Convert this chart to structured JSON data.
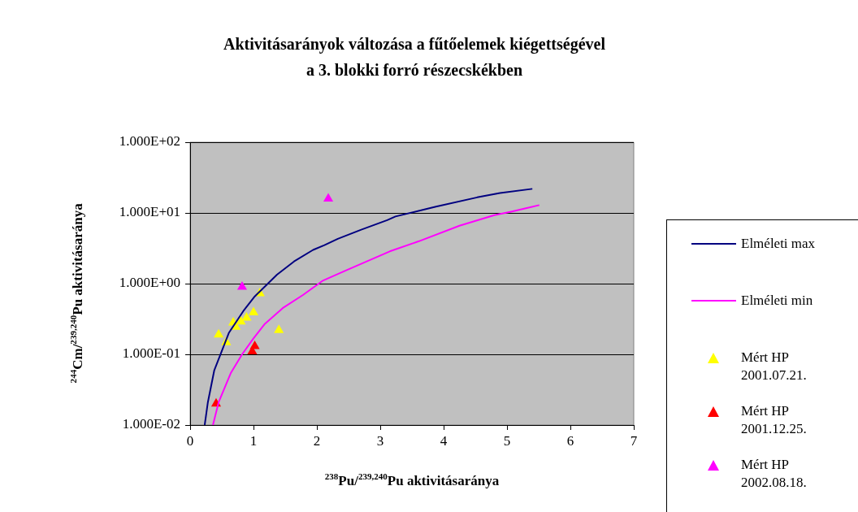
{
  "chart_data": {
    "type": "scatter",
    "title": "Aktivitásarányok változása a fűtőelemek kiégettségével\na 3. blokki forró részecskékben",
    "xlabel": "$^{238}$Pu/$^{239,240}$Pu aktivitásaránya",
    "ylabel": "$^{244}$Cm/$^{239,240}$Pu aktivitásaránya",
    "log": "y",
    "xlim": [
      0,
      7
    ],
    "xticks": [
      0,
      1,
      2,
      3,
      4,
      5,
      6,
      7
    ],
    "ylim": [
      0.01,
      100
    ],
    "yticks": [
      {
        "value": 0.01,
        "label": "1.000E-02"
      },
      {
        "value": 0.1,
        "label": "1.000E-01"
      },
      {
        "value": 1,
        "label": "1.000E+00"
      },
      {
        "value": 10,
        "label": "1.000E+01"
      },
      {
        "value": 100,
        "label": "1.000E+02"
      }
    ],
    "grid": "y",
    "legend": "right",
    "series": [
      {
        "name": "Elméleti max",
        "type": "line",
        "marker": "none",
        "color": "#000080",
        "x": [
          0.23,
          0.28,
          0.38,
          0.61,
          0.84,
          1.02,
          1.37,
          1.64,
          1.94,
          2.12,
          2.33,
          2.7,
          3.11,
          3.24,
          3.88,
          4.53,
          4.89,
          5.4
        ],
        "values": [
          0.01,
          0.021,
          0.059,
          0.2,
          0.41,
          0.66,
          1.34,
          2.06,
          3.0,
          3.5,
          4.3,
          5.8,
          7.9,
          8.9,
          12.3,
          16.6,
          19.1,
          21.9
        ]
      },
      {
        "name": "Elméleti min",
        "type": "line",
        "marker": "none",
        "color": "#ff00ff",
        "x": [
          0.36,
          0.45,
          0.64,
          0.82,
          1.0,
          1.18,
          1.46,
          1.78,
          2.1,
          2.47,
          3.15,
          3.61,
          4.25,
          4.8,
          5.08,
          5.51
        ],
        "values": [
          0.01,
          0.021,
          0.054,
          0.1,
          0.168,
          0.27,
          0.45,
          0.69,
          1.11,
          1.55,
          2.86,
          3.98,
          6.6,
          9.3,
          10.5,
          12.9
        ]
      },
      {
        "name": "Mért HP 2001.07.21.",
        "type": "scatter",
        "marker": "triangle",
        "color": "#ffff00",
        "x": [
          0.45,
          0.57,
          0.68,
          0.72,
          0.8,
          0.89,
          1.0,
          1.1,
          1.4
        ],
        "values": [
          0.19,
          0.148,
          0.28,
          0.245,
          0.29,
          0.33,
          0.39,
          0.73,
          0.22
        ]
      },
      {
        "name": "Mért HP 2001.12.25.",
        "type": "scatter",
        "marker": "triangle",
        "color": "#ff0000",
        "x": [
          0.41,
          0.98,
          1.02
        ],
        "values": [
          0.02,
          0.11,
          0.13
        ]
      },
      {
        "name": "Mért HP 2002.08.18.",
        "type": "scatter",
        "marker": "triangle",
        "color": "#ff00ff",
        "x": [
          0.82,
          2.18
        ],
        "values": [
          0.9,
          15.9
        ]
      }
    ]
  }
}
